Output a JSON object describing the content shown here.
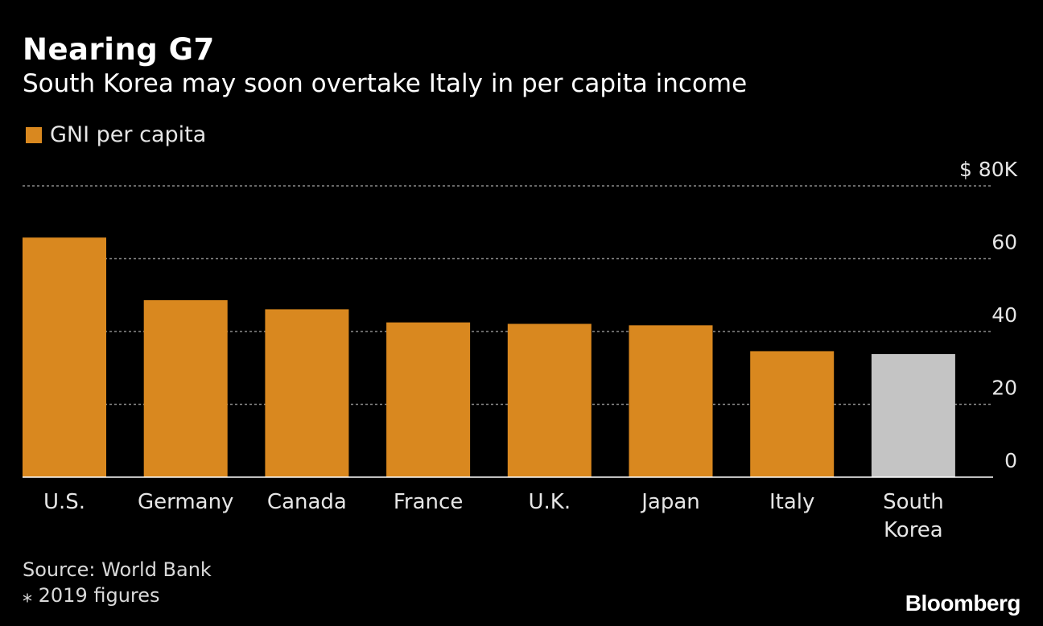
{
  "chart_data": {
    "type": "bar",
    "title": "Nearing G7",
    "subtitle": "South Korea may soon overtake Italy in per capita income",
    "categories": [
      "U.S.",
      "Germany",
      "Canada",
      "France",
      "U.K.",
      "Japan",
      "Italy",
      "South Korea"
    ],
    "category_labels": [
      [
        "U.S."
      ],
      [
        "Germany"
      ],
      [
        "Canada"
      ],
      [
        "France"
      ],
      [
        "U.K."
      ],
      [
        "Japan"
      ],
      [
        "Italy"
      ],
      [
        "South",
        "Korea"
      ]
    ],
    "series": [
      {
        "name": "GNI per capita",
        "values": [
          65.8,
          48.6,
          46.1,
          42.5,
          42.1,
          41.7,
          34.6,
          33.8
        ]
      }
    ],
    "bar_colors": [
      "#d9881f",
      "#d9881f",
      "#d9881f",
      "#d9881f",
      "#d9881f",
      "#d9881f",
      "#d9881f",
      "#c4c4c4"
    ],
    "ylim": [
      0,
      80
    ],
    "yticks": [
      0,
      20,
      40,
      60,
      80
    ],
    "ytick_labels": [
      "0",
      "20",
      "40",
      "60",
      "$ 80K"
    ],
    "grid": true,
    "legend_position": "top-left",
    "xlabel": "",
    "ylabel": ""
  },
  "legend": {
    "label": "GNI per capita",
    "color": "#d9881f"
  },
  "footer": {
    "source": "Source: World Bank",
    "note": "⁎ 2019 figures"
  },
  "brand": "Bloomberg"
}
